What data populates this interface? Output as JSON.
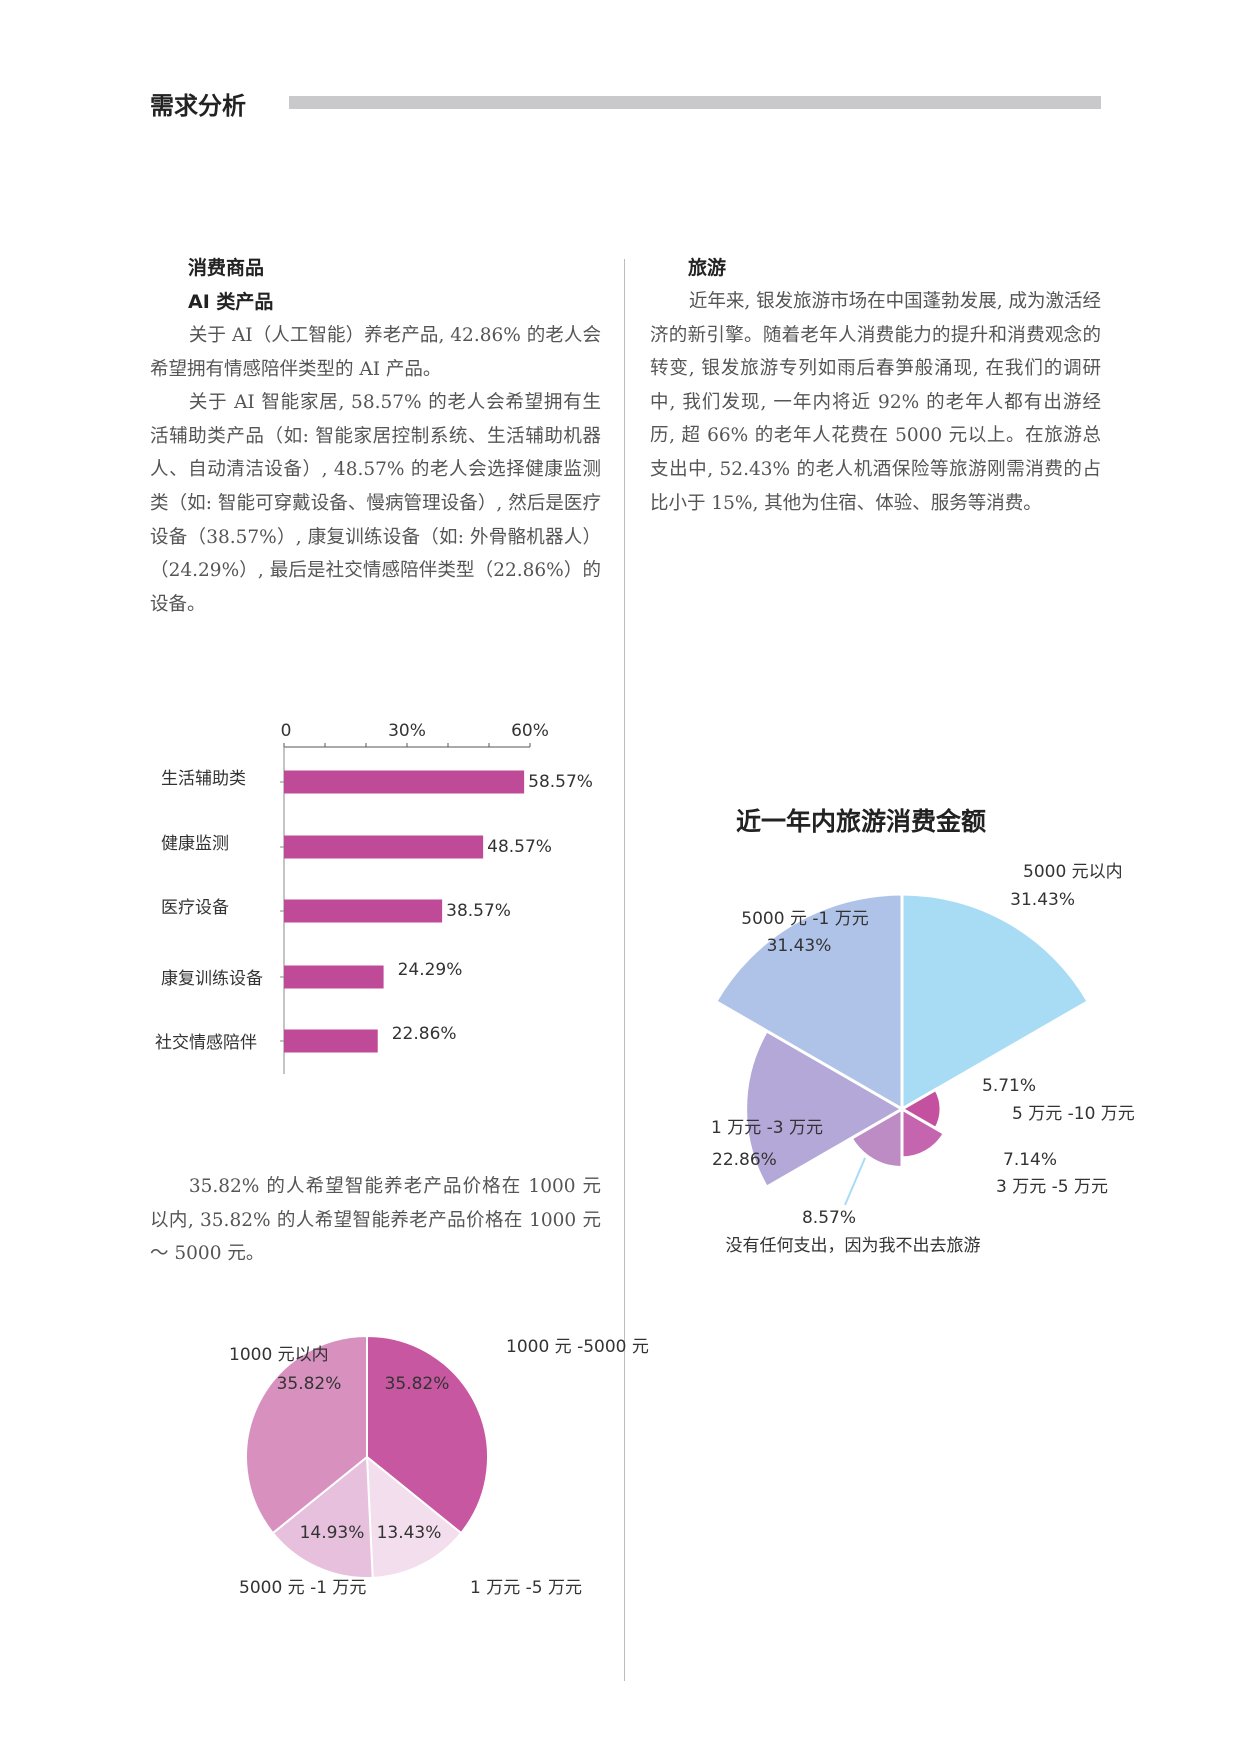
{
  "header": {
    "title": "需求分析"
  },
  "left": {
    "heading1": "消费商品",
    "heading2": "AI 类产品",
    "paragraphs": [
      "关于 AI（人工智能）养老产品, 42.86% 的老人会希望拥有情感陪伴类型的 AI 产品。",
      "关于 AI 智能家居, 58.57% 的老人会希望拥有生活辅助类产品（如: 智能家居控制系统、生活辅助机器人、自动清洁设备）, 48.57% 的老人会选择健康监测类（如: 智能可穿戴设备、慢病管理设备）, 然后是医疗设备（38.57%）, 康复训练设备（如: 外骨骼机器人）（24.29%）, 最后是社交情感陪伴类型（22.86%）的设备。"
    ],
    "price_paragraph": "35.82% 的人希望智能养老产品价格在 1000 元以内, 35.82% 的人希望智能养老产品价格在 1000 元～ 5000 元。"
  },
  "right": {
    "heading": "旅游",
    "paragraph": "近年来, 银发旅游市场在中国蓬勃发展, 成为激活经济的新引擎。随着老年人消费能力的提升和消费观念的转变, 银发旅游专列如雨后春笋般涌现, 在我们的调研中, 我们发现, 一年内将近 92% 的老年人都有出游经历, 超 66% 的老年人花费在 5000 元以上。在旅游总支出中, 52.43% 的老人机酒保险等旅游刚需消费的占比小于 15%, 其他为住宿、体验、服务等消费。"
  },
  "chart_data": [
    {
      "type": "bar",
      "orientation": "horizontal",
      "categories": [
        "生活辅助类",
        "健康监测",
        "医疗设备",
        "康复训练设备",
        "社交情感陪伴"
      ],
      "values": [
        58.57,
        48.57,
        38.57,
        24.29,
        22.86
      ],
      "data_labels": [
        "58.57%",
        "48.57%",
        "38.57%",
        "24.29%",
        "22.86%"
      ],
      "tick_labels": [
        "0",
        "30%",
        "60%"
      ],
      "xlim": [
        0,
        60
      ],
      "axis_position": "top",
      "color": "#be4a98"
    },
    {
      "type": "pie",
      "slices": [
        {
          "label": "1000 元 -5000 元",
          "value": 35.82,
          "value_label": "35.82%",
          "color": "#c757a0"
        },
        {
          "label": "1 万元 -5 万元",
          "value": 13.43,
          "value_label": "13.43%",
          "color": "#f2deec"
        },
        {
          "label": "5000 元 -1 万元",
          "value": 14.93,
          "value_label": "14.93%",
          "color": "#e6c0dc"
        },
        {
          "label": "1000 元以内",
          "value": 35.82,
          "value_label": "35.82%",
          "color": "#d891bf"
        }
      ]
    },
    {
      "type": "rose",
      "title": "近一年内旅游消费金额",
      "slices": [
        {
          "label": "5000 元以内",
          "value": 31.43,
          "value_label": "31.43%",
          "color": "#a8dcf5"
        },
        {
          "label": "5 万元 -10 万元",
          "value": 5.71,
          "value_label": "5.71%",
          "color": "#c4519f"
        },
        {
          "label": "3 万元 -5 万元",
          "value": 7.14,
          "value_label": "7.14%",
          "color": "#c565b0"
        },
        {
          "label": "没有任何支出，因为我不出去旅游",
          "value": 8.57,
          "value_label": "8.57%",
          "color": "#be8cc4"
        },
        {
          "label": "1 万元 -3 万元",
          "value": 22.86,
          "value_label": "22.86%",
          "color": "#b4a8d8"
        },
        {
          "label": "5000 元 -1 万元",
          "value": 31.43,
          "value_label": "31.43%",
          "color": "#afc3e8"
        }
      ]
    }
  ]
}
